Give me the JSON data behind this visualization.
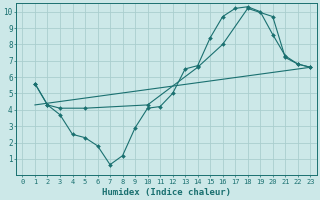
{
  "title": "",
  "xlabel": "Humidex (Indice chaleur)",
  "ylabel": "",
  "background_color": "#cce8e8",
  "grid_color": "#aacece",
  "line_color": "#1a7070",
  "xlim": [
    -0.5,
    23.5
  ],
  "ylim": [
    0,
    10.5
  ],
  "xticks": [
    0,
    1,
    2,
    3,
    4,
    5,
    6,
    7,
    8,
    9,
    10,
    11,
    12,
    13,
    14,
    15,
    16,
    17,
    18,
    19,
    20,
    21,
    22,
    23
  ],
  "yticks": [
    1,
    2,
    3,
    4,
    5,
    6,
    7,
    8,
    9,
    10
  ],
  "line1_x": [
    1,
    2,
    3,
    4,
    5,
    6,
    7,
    8,
    9,
    10,
    11,
    12,
    13,
    14,
    15,
    16,
    17,
    18,
    19,
    20,
    21,
    22,
    23
  ],
  "line1_y": [
    5.6,
    4.3,
    3.7,
    2.5,
    2.3,
    1.8,
    0.65,
    1.2,
    2.9,
    4.1,
    4.2,
    5.0,
    6.5,
    6.7,
    8.4,
    9.7,
    10.2,
    10.3,
    10.0,
    8.6,
    7.3,
    6.8,
    6.6
  ],
  "line2_x": [
    1,
    2,
    3,
    5,
    10,
    14,
    16,
    18,
    20,
    21,
    22,
    23
  ],
  "line2_y": [
    5.6,
    4.3,
    4.1,
    4.1,
    4.3,
    6.6,
    8.0,
    10.2,
    9.7,
    7.2,
    6.8,
    6.6
  ],
  "line3_x": [
    1,
    23
  ],
  "line3_y": [
    4.3,
    6.6
  ],
  "xlabel_fontsize": 6.5,
  "tick_fontsize": 5.0
}
